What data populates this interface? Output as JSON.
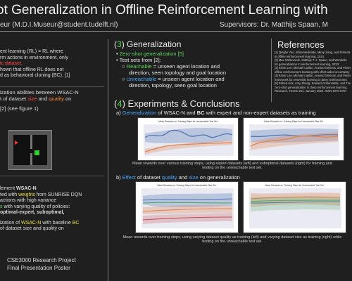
{
  "header": {
    "title": "ot Generalization in Offline Reinforcement Learning with",
    "author": "eur (M.D.I.Museur@student.tudelft.nl)",
    "supervisors": "Supervisors: Dr. Matthijs Spaan, M"
  },
  "left": {
    "lines": [
      "ent learning (RL) = RL      where",
      "rm actions in environment, only",
      "ic dataset.",
      "hown that offline RL does not",
      "d as behavioral cloning (BC). [1]"
    ],
    "lines2": [
      "ization abilities between WSAC-N",
      "t of dataset size and quality on",
      "[2] (see figure 1)"
    ],
    "lines3": [
      "lement WSAC-N",
      "ted with weights from SUNRISE DQN",
      "actions with high variance",
      "s with varying quality of policies:",
      "optimal-expert, suboptimal,",
      "ization of WSAC-N with baseline BC",
      "of dataset size and quality on"
    ],
    "footer1": "CSE3000 Research Project",
    "footer2": "Final Presentation Poster"
  },
  "generalization": {
    "heading_num": "3",
    "heading": "Generalization",
    "bullet1": "Zero-shot generalization [5]",
    "bullet2": "Test sets from [2]:",
    "sub1_key": "Reachable",
    "sub1_text": " = unseen agent location and",
    "sub1_cont": "direction, seen topology and goal location",
    "sub2_key": "Unreachable",
    "sub2_text": " = unseen agent location and",
    "sub2_cont": "direction, topology, seen goal location"
  },
  "references": {
    "heading": "References",
    "items": [
      "[1] Qinghe Yao, Ishita Mediratta, Minqi Jiang, and Roberta",
      "in offline reinforcement learning, 2024.",
      "[2] Max Weltevrede, Matthijs T. J. Spaan, and Wendelin",
      "for generalization in reinforcement learning, 2023.",
      "[3] Kimin Lee, Michael Laskin, Aravind Srinivas, and Pieter",
      "offline reinforcement learning with effort-aided uncertainty",
      "[4] Kimin Lee, Michael Laskin, Aravind Srinivas, and Pieter",
      "framework for ensemble learning in deep reinforcement",
      "[5] Robert Kirk, Amy Zhang, Edward Grefenstette, and Tim",
      "zero-shot generalization in deep reinforcement learning.",
      "Research, 76:201-264, January 2023. ISSN 1076-9757"
    ]
  },
  "experiments": {
    "heading_num": "4",
    "heading": "Experiments & Conclusions",
    "a_label": "a)",
    "a_text1": "Generalization",
    "a_text2": " of WSAC-N and ",
    "a_text3": "BC",
    "a_text4": " with expert and non-expert datasets as training",
    "a_caption1": "Mean rewards over various training steps, using expert datasets (left) and suboptimal datasets (right) for training and",
    "a_caption2": "testing on the unreachable test set.",
    "b_label": "b)",
    "b_text1": "Effect",
    "b_text2": " of dataset ",
    "b_text3": "quality",
    "b_text4": " and ",
    "b_text5": "size",
    "b_text6": " on generalization",
    "b_caption1": "Mean rewards over training steps, using varying dataset quality as training (left) and varying dataset size as training (right) while",
    "b_caption2": "testing on the unreachable test set."
  },
  "charts": {
    "c1_title": "Mean Rewards vs. Training Steps for Unreachable Test Set",
    "c2_title": "Mean Rewards vs. Training Steps for Unreachable Test Set",
    "c3_title": "Mean Rewards vs. Training Steps for Unreachable Test Set",
    "c4_title": "Mean Rewards vs. Training Steps for Unreachable Test Set"
  },
  "colors": {
    "green": "#5bd65b",
    "red": "#ff4d4d",
    "blue": "#4aa8ff",
    "yellow": "#f0e040",
    "orange": "#ff8a3d"
  }
}
